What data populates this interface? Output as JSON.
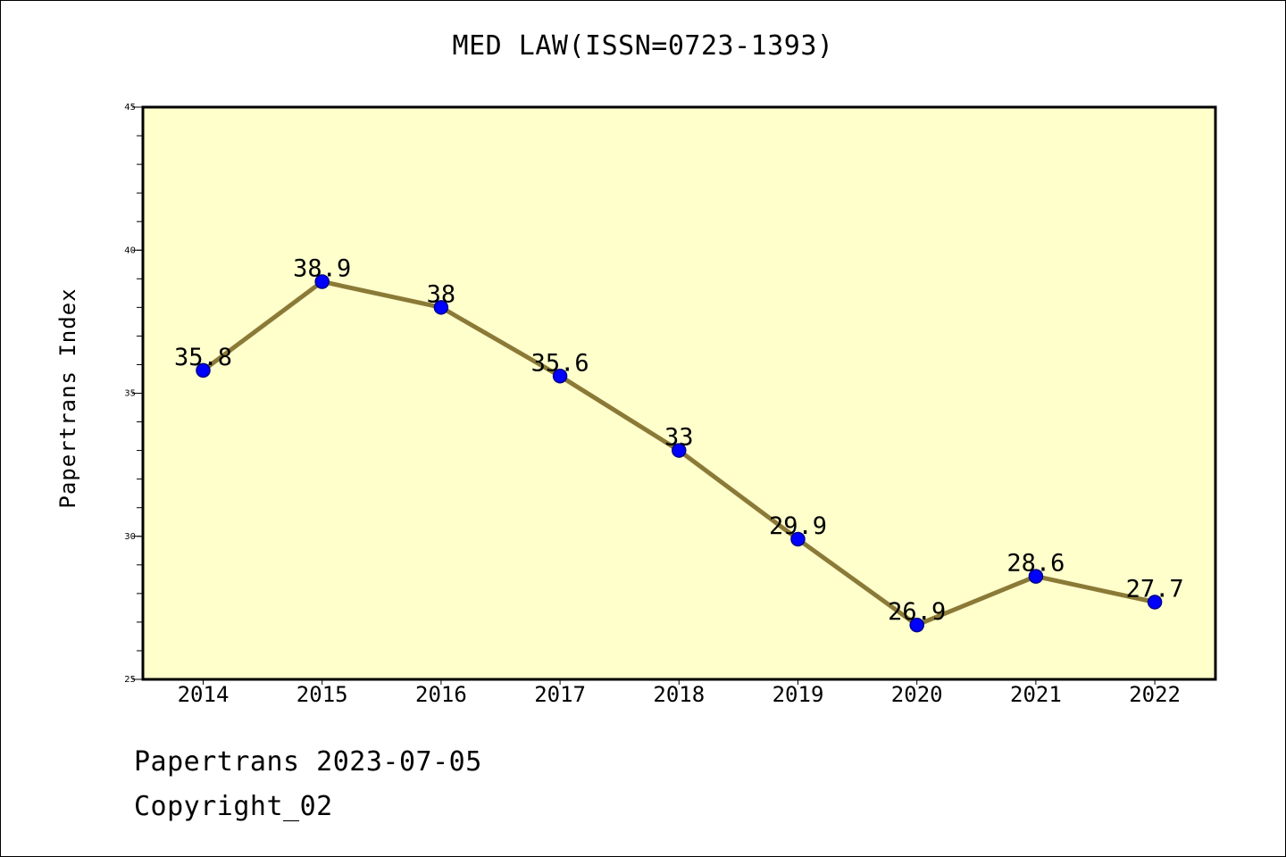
{
  "colors": {
    "plot_background": "#ffffcc",
    "line": "#8b7a37",
    "marker_fill": "#0000ff",
    "marker_edge": "#00008b"
  },
  "chart_data": {
    "type": "line",
    "title": "MED LAW(ISSN=0723-1393)",
    "xlabel": "",
    "ylabel": "Papertrans Index",
    "categories": [
      "2014",
      "2015",
      "2016",
      "2017",
      "2018",
      "2019",
      "2020",
      "2021",
      "2022"
    ],
    "series": [
      {
        "values": [
          35.8,
          38.9,
          38,
          35.6,
          33,
          29.9,
          26.9,
          28.6,
          27.7
        ],
        "data_labels": [
          "35.8",
          "38.9",
          "38",
          "35.6",
          "33",
          "29.9",
          "26.9",
          "28.6",
          "27.7"
        ]
      }
    ],
    "ylim": [
      25,
      45
    ],
    "y_major_ticks": [
      "25",
      "30",
      "35",
      "40",
      "45"
    ],
    "y_minor_step": 1,
    "grid": false,
    "legend": "none"
  },
  "footer": {
    "date_line": "Papertrans 2023-07-05",
    "copyright": "Copyright_02"
  }
}
